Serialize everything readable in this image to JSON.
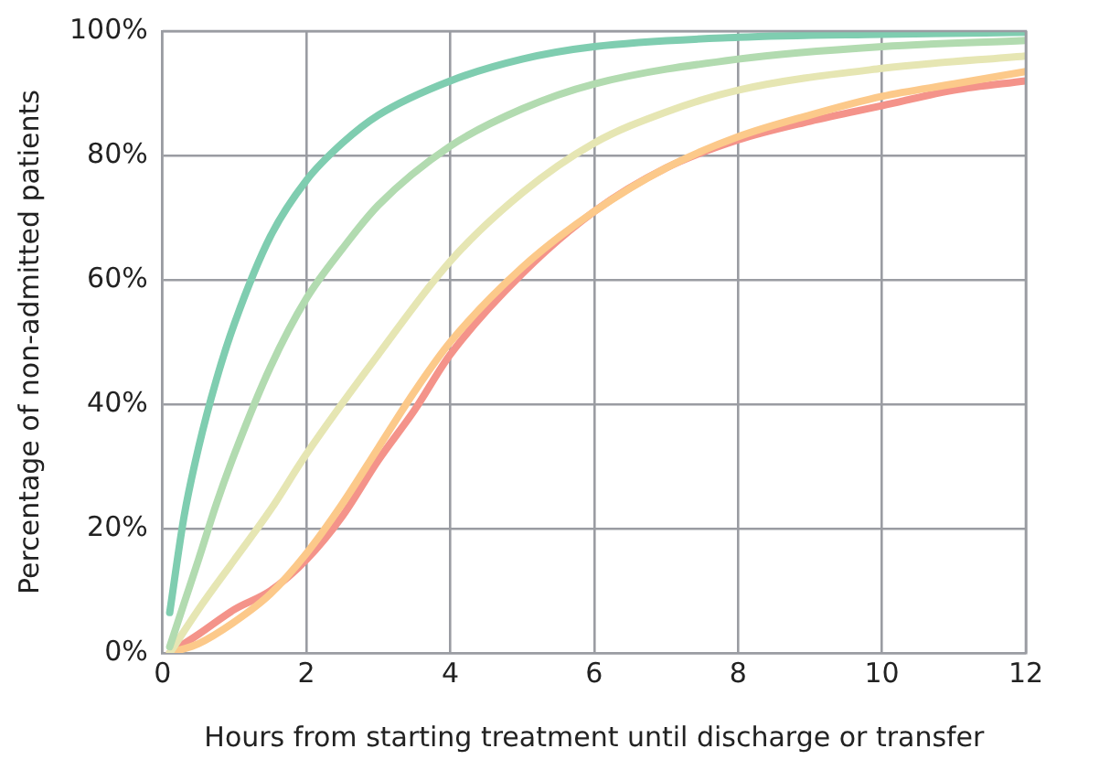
{
  "chart_data": {
    "type": "line",
    "xlabel": "Hours from starting treatment until discharge or transfer",
    "ylabel": "Percentage of non-admitted patients",
    "xlim": [
      0,
      12
    ],
    "xticks": [
      0,
      2,
      4,
      6,
      8,
      10,
      12
    ],
    "ylim": [
      0,
      100
    ],
    "yticks": [
      {
        "value": 0,
        "label": "0%"
      },
      {
        "value": 20,
        "label": "20%"
      },
      {
        "value": 40,
        "label": "40%"
      },
      {
        "value": 60,
        "label": "60%"
      },
      {
        "value": 80,
        "label": "80%"
      },
      {
        "value": 100,
        "label": "100%"
      }
    ],
    "grid": true,
    "legend": false,
    "marker": "none",
    "line_style": "solid",
    "series": [
      {
        "color": "#7fcdb0",
        "x": [
          0.1,
          0.3,
          0.5,
          0.75,
          1,
          1.5,
          2,
          2.5,
          3,
          4,
          5,
          6,
          8,
          10,
          12
        ],
        "values": [
          6.5,
          22,
          33,
          44,
          53,
          67,
          76,
          82,
          86.5,
          92,
          95.5,
          97.5,
          99,
          99.5,
          99.8
        ]
      },
      {
        "color": "#b2dbb0",
        "x": [
          0.1,
          0.3,
          0.5,
          0.75,
          1,
          1.5,
          2,
          2.5,
          3,
          4,
          5,
          6,
          8,
          10,
          12
        ],
        "values": [
          1,
          8,
          15,
          24,
          32,
          46,
          57,
          65,
          72,
          81.5,
          87.5,
          91.5,
          95.5,
          97.5,
          98.5
        ]
      },
      {
        "color": "#e6e6b3",
        "x": [
          0.1,
          0.5,
          1,
          1.5,
          2,
          3,
          4,
          5,
          6,
          7,
          8,
          10,
          12
        ],
        "values": [
          0,
          7,
          15,
          23,
          32,
          48,
          63,
          74,
          82,
          87,
          90.5,
          94,
          96
        ]
      },
      {
        "color": "#fcc98a",
        "x": [
          0.1,
          0.5,
          1,
          1.5,
          2,
          2.5,
          3,
          3.5,
          4,
          5,
          6,
          7,
          8,
          9,
          10,
          11,
          12
        ],
        "values": [
          0,
          1.5,
          5,
          9.5,
          16,
          24,
          33,
          42,
          50,
          62,
          71,
          78,
          83,
          86.5,
          89.5,
          91.5,
          93.5
        ]
      },
      {
        "color": "#f4938a",
        "x": [
          0.1,
          0.5,
          1,
          1.5,
          2,
          2.5,
          3,
          3.5,
          4,
          5,
          6,
          7,
          8,
          9,
          10,
          11,
          12
        ],
        "values": [
          0,
          3,
          7,
          10,
          15,
          22,
          31,
          39,
          48,
          61,
          71,
          78,
          82.5,
          85.5,
          88,
          90.5,
          92
        ]
      }
    ]
  }
}
